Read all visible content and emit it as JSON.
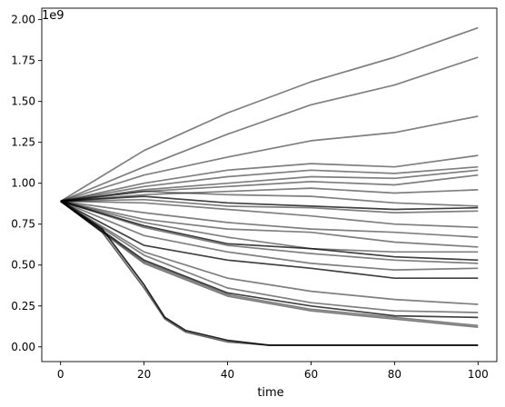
{
  "chart_data": {
    "type": "line",
    "title": "",
    "xlabel": "time",
    "ylabel": "",
    "y_scale_label": "1e9",
    "xlim": [
      -4.5,
      104.5
    ],
    "ylim": [
      -0.09,
      2.07
    ],
    "x_ticks": [
      0,
      20,
      40,
      60,
      80,
      100
    ],
    "x_tick_labels": [
      "0",
      "20",
      "40",
      "60",
      "80",
      "100"
    ],
    "y_ticks": [
      0.0,
      0.25,
      0.5,
      0.75,
      1.0,
      1.25,
      1.5,
      1.75,
      2.0
    ],
    "y_tick_labels": [
      "0.00",
      "0.25",
      "0.50",
      "0.75",
      "1.00",
      "1.25",
      "1.50",
      "1.75",
      "2.00"
    ],
    "grid": false,
    "legend": "none",
    "line_color": "#000000",
    "series": [
      {
        "x": [
          0,
          20,
          40,
          60,
          80,
          100
        ],
        "y": [
          0.89,
          1.2,
          1.43,
          1.62,
          1.77,
          1.95
        ],
        "opacity": 0.5
      },
      {
        "x": [
          0,
          20,
          40,
          60,
          80,
          100
        ],
        "y": [
          0.89,
          1.1,
          1.3,
          1.48,
          1.6,
          1.77
        ],
        "opacity": 0.5
      },
      {
        "x": [
          0,
          20,
          40,
          60,
          80,
          100
        ],
        "y": [
          0.89,
          1.05,
          1.16,
          1.26,
          1.31,
          1.41
        ],
        "opacity": 0.5
      },
      {
        "x": [
          0,
          20,
          40,
          60,
          80,
          100
        ],
        "y": [
          0.89,
          1.0,
          1.08,
          1.12,
          1.1,
          1.17
        ],
        "opacity": 0.5
      },
      {
        "x": [
          0,
          20,
          40,
          60,
          80,
          100
        ],
        "y": [
          0.89,
          0.98,
          1.04,
          1.08,
          1.06,
          1.1
        ],
        "opacity": 0.5
      },
      {
        "x": [
          0,
          20,
          40,
          60,
          80,
          100
        ],
        "y": [
          0.89,
          0.96,
          1.0,
          1.04,
          1.03,
          1.08
        ],
        "opacity": 0.5
      },
      {
        "x": [
          0,
          20,
          40,
          60,
          80,
          100
        ],
        "y": [
          0.89,
          0.95,
          0.98,
          1.01,
          0.99,
          1.05
        ],
        "opacity": 0.5
      },
      {
        "x": [
          0,
          20,
          40,
          60,
          80,
          100
        ],
        "y": [
          0.89,
          0.93,
          0.95,
          0.97,
          0.94,
          0.96
        ],
        "opacity": 0.5
      },
      {
        "x": [
          0,
          20,
          40,
          60,
          80,
          100
        ],
        "y": [
          0.89,
          0.95,
          0.93,
          0.92,
          0.88,
          0.86
        ],
        "opacity": 0.5
      },
      {
        "x": [
          0,
          20,
          40,
          60,
          80,
          100
        ],
        "y": [
          0.89,
          0.92,
          0.88,
          0.86,
          0.84,
          0.85
        ],
        "opacity": 0.75
      },
      {
        "x": [
          0,
          20,
          40,
          60,
          80,
          100
        ],
        "y": [
          0.89,
          0.9,
          0.86,
          0.85,
          0.82,
          0.83
        ],
        "opacity": 0.5
      },
      {
        "x": [
          0,
          20,
          40,
          60,
          80,
          100
        ],
        "y": [
          0.89,
          0.88,
          0.84,
          0.8,
          0.75,
          0.73
        ],
        "opacity": 0.5
      },
      {
        "x": [
          0,
          20,
          40,
          60,
          80,
          100
        ],
        "y": [
          0.89,
          0.82,
          0.76,
          0.72,
          0.7,
          0.67
        ],
        "opacity": 0.5
      },
      {
        "x": [
          0,
          20,
          40,
          60,
          80,
          100
        ],
        "y": [
          0.89,
          0.78,
          0.72,
          0.7,
          0.64,
          0.61
        ],
        "opacity": 0.5
      },
      {
        "x": [
          0,
          20,
          40,
          60,
          80,
          100
        ],
        "y": [
          0.89,
          0.76,
          0.67,
          0.6,
          0.58,
          0.58
        ],
        "opacity": 0.5
      },
      {
        "x": [
          0,
          20,
          40,
          60,
          80,
          100
        ],
        "y": [
          0.89,
          0.74,
          0.63,
          0.6,
          0.55,
          0.53
        ],
        "opacity": 0.75
      },
      {
        "x": [
          0,
          20,
          40,
          60,
          80,
          100
        ],
        "y": [
          0.89,
          0.73,
          0.62,
          0.57,
          0.53,
          0.51
        ],
        "opacity": 0.5
      },
      {
        "x": [
          0,
          20,
          40,
          60,
          80,
          100
        ],
        "y": [
          0.89,
          0.68,
          0.58,
          0.51,
          0.47,
          0.48
        ],
        "opacity": 0.5
      },
      {
        "x": [
          0,
          20,
          40,
          60,
          80,
          100
        ],
        "y": [
          0.89,
          0.62,
          0.53,
          0.48,
          0.42,
          0.42
        ],
        "opacity": 0.75
      },
      {
        "x": [
          0,
          20,
          40,
          60,
          80,
          100
        ],
        "y": [
          0.89,
          0.58,
          0.42,
          0.34,
          0.29,
          0.26
        ],
        "opacity": 0.5
      },
      {
        "x": [
          0,
          20,
          40,
          60,
          80,
          100
        ],
        "y": [
          0.89,
          0.56,
          0.36,
          0.27,
          0.22,
          0.21
        ],
        "opacity": 0.5
      },
      {
        "x": [
          0,
          20,
          40,
          60,
          80,
          100
        ],
        "y": [
          0.89,
          0.53,
          0.33,
          0.25,
          0.19,
          0.18
        ],
        "opacity": 0.75
      },
      {
        "x": [
          0,
          20,
          40,
          60,
          80,
          100
        ],
        "y": [
          0.89,
          0.52,
          0.32,
          0.23,
          0.18,
          0.13
        ],
        "opacity": 0.5
      },
      {
        "x": [
          0,
          20,
          40,
          60,
          80,
          100
        ],
        "y": [
          0.89,
          0.51,
          0.31,
          0.22,
          0.17,
          0.12
        ],
        "opacity": 0.5
      },
      {
        "x": [
          0,
          10,
          20,
          25,
          30,
          40,
          50,
          100
        ],
        "y": [
          0.89,
          0.72,
          0.38,
          0.18,
          0.1,
          0.04,
          0.01,
          0.01
        ],
        "opacity": 0.85
      },
      {
        "x": [
          0,
          10,
          20,
          25,
          30,
          40,
          50,
          100
        ],
        "y": [
          0.89,
          0.7,
          0.36,
          0.17,
          0.09,
          0.03,
          0.01,
          0.01
        ],
        "opacity": 0.6
      }
    ]
  }
}
